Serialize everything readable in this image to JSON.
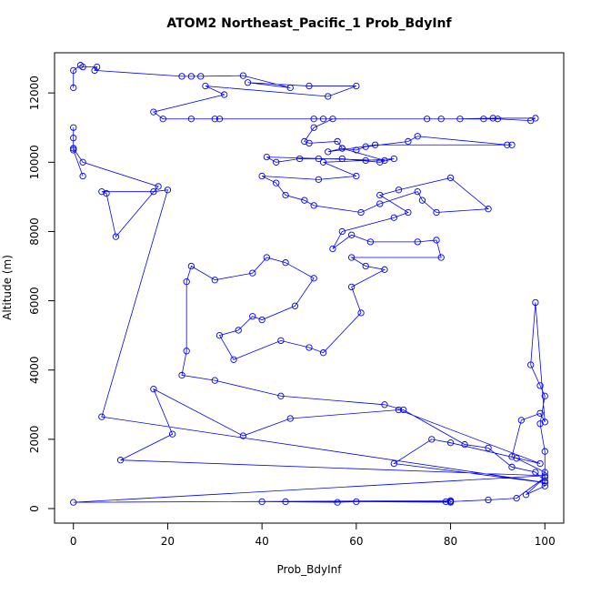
{
  "chart_data": {
    "type": "scatter",
    "mode": "lines+markers",
    "title": "ATOM2 Northeast_Pacific_1 Prob_BdyInf",
    "xlabel": "Prob_BdyInf",
    "ylabel": "Altitude (m)",
    "color": "#0000ff",
    "xlim": [
      -4,
      104
    ],
    "ylim": [
      -420,
      13160
    ],
    "xticks": [
      0,
      20,
      40,
      60,
      80,
      100
    ],
    "yticks": [
      0,
      2000,
      4000,
      6000,
      8000,
      10000,
      12000
    ],
    "x": [
      0,
      0,
      1.5,
      2,
      5,
      4.5,
      23,
      25,
      27,
      36,
      46,
      37,
      50,
      60,
      54,
      28,
      32,
      17,
      19,
      25,
      31,
      30,
      51,
      53,
      75,
      78,
      87,
      90,
      97,
      98,
      89,
      82,
      55,
      51,
      49,
      50,
      56,
      57,
      60,
      62,
      71,
      73,
      92,
      93,
      64,
      54,
      57,
      66,
      41,
      43,
      48,
      52,
      57,
      65,
      68,
      62,
      53,
      60,
      52,
      40,
      43,
      45,
      49,
      51,
      61,
      65,
      73,
      74,
      77,
      88,
      80,
      69,
      65,
      71,
      68,
      57,
      55,
      59,
      63,
      73,
      77,
      78,
      59,
      62,
      66,
      59,
      61,
      53,
      50,
      44,
      34,
      31,
      35,
      38,
      40,
      47,
      51,
      45,
      41,
      38,
      30,
      25,
      24,
      24,
      23,
      30,
      44,
      66,
      70,
      83,
      88,
      93,
      98,
      100,
      100,
      99,
      100,
      99,
      97,
      98,
      100,
      99,
      95,
      93,
      94,
      100,
      100,
      96,
      100,
      94,
      88,
      80,
      80,
      60,
      56,
      40,
      45,
      79,
      80,
      0,
      100,
      10,
      21,
      17,
      36,
      46,
      69,
      99,
      80,
      76,
      68,
      100,
      6,
      20,
      17,
      6,
      7,
      9,
      18,
      2,
      0,
      0,
      0,
      0,
      0,
      2
    ],
    "values": [
      12150,
      12650,
      12800,
      12750,
      12750,
      12650,
      12480,
      12480,
      12480,
      12500,
      12150,
      12300,
      12200,
      12200,
      11900,
      12200,
      11950,
      11450,
      11250,
      11250,
      11250,
      11250,
      11250,
      11250,
      11250,
      11250,
      11250,
      11250,
      11200,
      11270,
      11270,
      11250,
      11250,
      11000,
      10600,
      10550,
      10600,
      10400,
      10350,
      10450,
      10600,
      10750,
      10500,
      10500,
      10500,
      10300,
      10400,
      10050,
      10150,
      10000,
      10100,
      10100,
      10100,
      10000,
      10100,
      10050,
      10000,
      9600,
      9500,
      9600,
      9400,
      9050,
      8900,
      8750,
      8550,
      8800,
      9150,
      8900,
      8550,
      8650,
      9550,
      9200,
      9050,
      8550,
      8400,
      8000,
      7500,
      7900,
      7700,
      7700,
      7750,
      7250,
      7250,
      7000,
      6900,
      6400,
      5650,
      4500,
      4650,
      4850,
      4300,
      5000,
      5150,
      5550,
      5450,
      5850,
      6650,
      7100,
      7250,
      6800,
      6600,
      7000,
      6550,
      4550,
      3850,
      3700,
      3250,
      3000,
      2850,
      1850,
      1750,
      1200,
      1050,
      800,
      1650,
      2450,
      3250,
      3550,
      4150,
      5950,
      2500,
      2750,
      2550,
      1500,
      1450,
      1050,
      650,
      400,
      900,
      300,
      250,
      200,
      180,
      200,
      180,
      200,
      200,
      200,
      230,
      180,
      950,
      1400,
      2150,
      3450,
      2100,
      2600,
      2850,
      1300,
      1900,
      2000,
      1300,
      750,
      2650,
      9200,
      9150,
      9150,
      9100,
      7850,
      9300,
      10000,
      10400,
      10700,
      11000,
      10400,
      10350,
      9600
    ]
  }
}
